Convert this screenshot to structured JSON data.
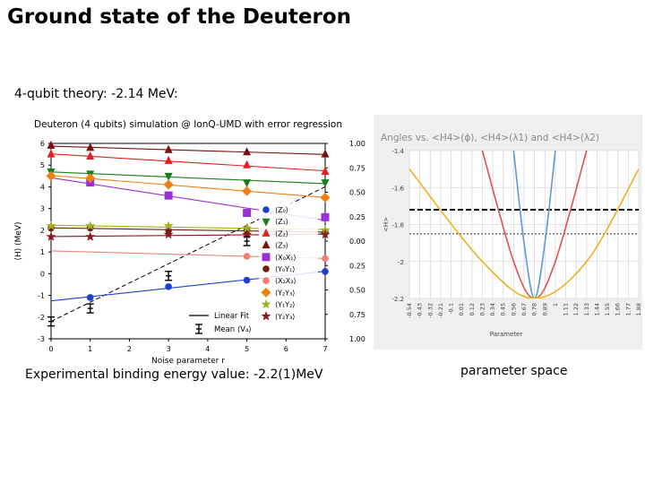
{
  "slide": {
    "title": "Ground state of the Deuteron",
    "subtitle": "4-qubit theory: -2.14 MeV:",
    "caption_left": "Experimental binding energy value: -2.2(1)MeV",
    "caption_right": "parameter space"
  },
  "chart_data": [
    {
      "type": "scatter",
      "title": "Deuteron (4 qubits) simulation @ IonQ-UMD with error regression",
      "xlabel": "Noise parameter r",
      "ylabel": "⟨H⟩ (MeV)",
      "xlim": [
        0,
        7
      ],
      "ylim": [
        -3,
        6
      ],
      "x_ticks": [
        "0",
        "1",
        "2",
        "3",
        "4",
        "5",
        "6",
        "7"
      ],
      "y_ticks": [
        "-3",
        "-2",
        "-1",
        "0",
        "1",
        "2",
        "3",
        "4",
        "5",
        "6"
      ],
      "right_ticks": [
        "1.00",
        "0.75",
        "0.50",
        "0.25",
        "0.00",
        "0.25",
        "0.50",
        "0.75",
        "1.00"
      ],
      "legend_position": "right",
      "series": [
        {
          "name": "⟨Z₀⟩",
          "color": "#1f3fd1",
          "marker": "circle",
          "x": [
            1,
            3,
            5,
            7
          ],
          "y": [
            -1.1,
            -0.6,
            -0.3,
            0.1
          ]
        },
        {
          "name": "⟨Z₁⟩",
          "color": "#1a7f1a",
          "marker": "tri-down",
          "x": [
            0,
            1,
            3,
            5,
            7
          ],
          "y": [
            4.7,
            4.6,
            4.5,
            4.2,
            4.2
          ]
        },
        {
          "name": "⟨Z₂⟩",
          "color": "#e32020",
          "marker": "tri-up",
          "x": [
            0,
            1,
            3,
            5,
            7
          ],
          "y": [
            5.5,
            5.4,
            5.2,
            5.0,
            4.7
          ]
        },
        {
          "name": "⟨Z₃⟩",
          "color": "#7a1010",
          "marker": "tri-up",
          "x": [
            0,
            1,
            3,
            5,
            7
          ],
          "y": [
            5.9,
            5.8,
            5.7,
            5.6,
            5.5
          ]
        },
        {
          "name": "⟨X₀X₁⟩",
          "color": "#9a30d8",
          "marker": "square",
          "x": [
            1,
            3,
            5,
            7
          ],
          "y": [
            4.2,
            3.6,
            2.8,
            2.6
          ]
        },
        {
          "name": "⟨Y₀Y₁⟩",
          "color": "#6d1f10",
          "marker": "circle",
          "x": [
            0,
            1,
            3,
            5,
            7
          ],
          "y": [
            2.1,
            2.1,
            2.0,
            2.0,
            1.9
          ]
        },
        {
          "name": "⟨X₂X₃⟩",
          "color": "#f08070",
          "marker": "circle",
          "x": [
            5,
            7
          ],
          "y": [
            0.8,
            0.7
          ]
        },
        {
          "name": "⟨Y₂Y₃⟩",
          "color": "#f07f10",
          "marker": "diamond",
          "x": [
            0,
            1,
            3,
            5,
            7
          ],
          "y": [
            4.5,
            4.4,
            4.1,
            3.8,
            3.5
          ]
        },
        {
          "name": "⟨Y₁Y₂⟩",
          "color": "#a0b020",
          "marker": "star",
          "x": [
            0,
            1,
            3,
            5,
            7
          ],
          "y": [
            2.2,
            2.2,
            2.2,
            2.1,
            2.0
          ]
        },
        {
          "name": "⟨Y₂Y₃⟩",
          "color": "#8b1a1a",
          "marker": "star",
          "x": [
            0,
            1,
            3,
            5,
            7
          ],
          "y": [
            1.7,
            1.7,
            1.8,
            1.8,
            1.8
          ]
        },
        {
          "name": "Mean ⟨V₄⟩",
          "color": "#000000",
          "marker": "errorbar",
          "x": [
            0,
            1,
            3,
            5
          ],
          "y": [
            -2.2,
            -1.6,
            -0.1,
            1.5
          ]
        }
      ],
      "fit_line_label": "Linear Fit",
      "fit_line": {
        "x": [
          0,
          7
        ],
        "y": [
          -2.2,
          4.0
        ]
      }
    },
    {
      "type": "line",
      "title": "Angles vs. <H4>(ϕ), <H4>(λ1) and <H4>(λ2)",
      "xlabel": "Parameter",
      "ylabel": "<H>",
      "ylim": [
        -2.2,
        -1.4
      ],
      "x_ticks": [
        "-0.54",
        "-0.43",
        "-0.32",
        "-0.21",
        "-0.1",
        "0.01",
        "0.12",
        "0.23",
        "0.34",
        "0.45",
        "0.56",
        "0.67",
        "0.78",
        "0.89",
        "1",
        "1.11",
        "1.22",
        "1.33",
        "1.44",
        "1.55",
        "1.66",
        "1.77",
        "1.88"
      ],
      "y_ticks": [
        "-1.4",
        "-1.6",
        "-1.8",
        "-2",
        "-2.2"
      ],
      "series": [
        {
          "color": "#5b9bd5",
          "x": [
            0.56,
            0.67,
            0.78,
            0.89,
            1.0
          ],
          "y": [
            -1.4,
            -1.9,
            -2.2,
            -1.9,
            -1.4
          ]
        },
        {
          "color": "#e05050",
          "x": [
            0.23,
            0.56,
            0.78,
            1.0,
            1.33
          ],
          "y": [
            -1.4,
            -2.0,
            -2.2,
            -2.0,
            -1.4
          ]
        },
        {
          "color": "#f0b020",
          "x": [
            -0.54,
            0.23,
            0.78,
            1.33,
            1.88
          ],
          "y": [
            -1.5,
            -2.0,
            -2.2,
            -2.0,
            -1.5
          ]
        }
      ],
      "reference_lines": [
        {
          "style": "dashed",
          "color": "#000000",
          "y": -1.72
        },
        {
          "style": "dotted",
          "color": "#333333",
          "y": -1.85
        }
      ]
    }
  ]
}
